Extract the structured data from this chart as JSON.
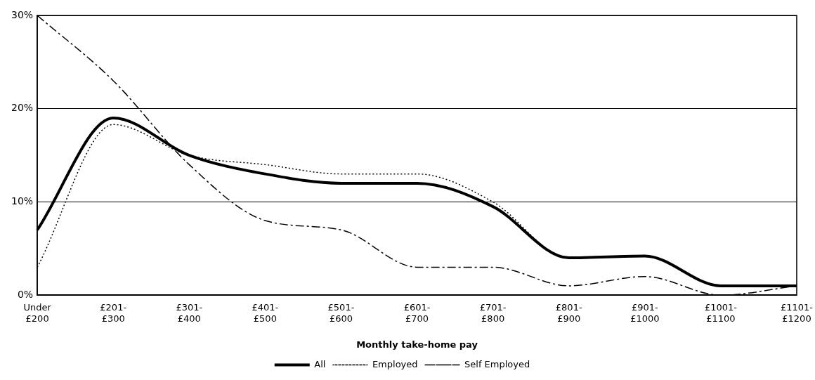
{
  "chart_data": {
    "type": "line",
    "xlabel": "Monthly take-home pay",
    "categories": [
      "Under £200",
      "£201-£300",
      "£301-£400",
      "£401-£500",
      "£501-£600",
      "£601-£700",
      "£701-£800",
      "£801-£900",
      "£901-£1000",
      "£1001-£1100",
      "£1101-£1200"
    ],
    "series": [
      {
        "name": "All",
        "color": "#000000",
        "line_style": "solid",
        "values": [
          7,
          19,
          15,
          13,
          12,
          12,
          9.5,
          4,
          4.2,
          1,
          1
        ]
      },
      {
        "name": "Employed",
        "color": "#000000",
        "line_style": "dotted",
        "values": [
          3,
          18.3,
          15,
          14,
          13,
          13,
          10,
          4,
          4.2,
          1,
          1
        ]
      },
      {
        "name": "Self Employed",
        "color": "#000000",
        "line_style": "dashed",
        "values": [
          30,
          23,
          14,
          8,
          7,
          3,
          3,
          1,
          2,
          0,
          1
        ]
      }
    ],
    "ylim": [
      0,
      30
    ],
    "yticks": [
      {
        "value": 0,
        "label": "0%"
      },
      {
        "value": 10,
        "label": "10%"
      },
      {
        "value": 20,
        "label": "20%"
      },
      {
        "value": 30,
        "label": "30%"
      }
    ],
    "grid": "y",
    "legend": "bottom",
    "marker": "none"
  }
}
